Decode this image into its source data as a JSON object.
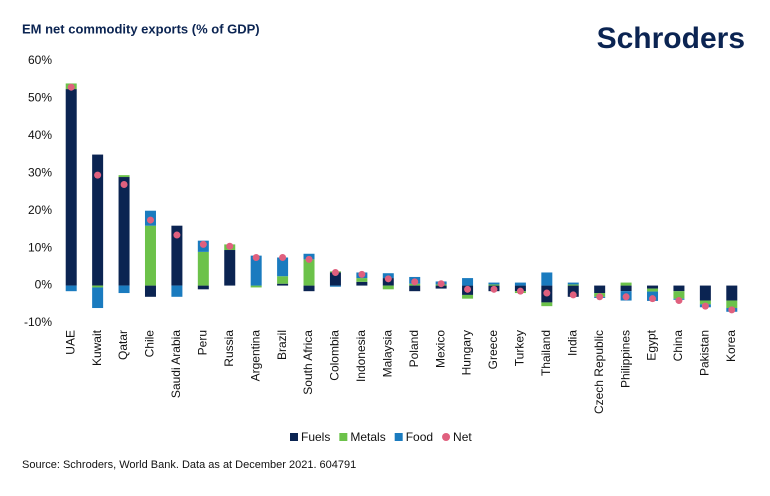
{
  "chart_data": {
    "type": "bar",
    "stacked": true,
    "title": "EM net commodity exports (% of GDP)",
    "logo": "Schroders",
    "source": "Source: Schroders, World Bank. Data as at December 2021. 604791",
    "categories": [
      "UAE",
      "Kuwait",
      "Qatar",
      "Chile",
      "Saudi Arabia",
      "Peru",
      "Russia",
      "Argentina",
      "Brazil",
      "South Africa",
      "Colombia",
      "Indonesia",
      "Malaysia",
      "Poland",
      "Mexico",
      "Hungary",
      "Greece",
      "Turkey",
      "Thailand",
      "India",
      "Czech Republic",
      "Philippines",
      "Egypt",
      "China",
      "Pakistan",
      "Korea"
    ],
    "series": [
      {
        "name": "Fuels",
        "color": "#0b2452",
        "values": [
          52.5,
          35,
          29,
          -3,
          16,
          -1,
          9.5,
          0,
          0.5,
          -1.5,
          3.5,
          1,
          2,
          -1.5,
          -0.8,
          -2.5,
          -1.5,
          -1.5,
          -4.5,
          -3,
          -2,
          -1.5,
          -0.8,
          -1.5,
          -4,
          -4
        ]
      },
      {
        "name": "Metals",
        "color": "#6cc24a",
        "values": [
          1.5,
          -0.5,
          0.5,
          16,
          0,
          9,
          1.5,
          -0.5,
          2,
          7,
          0.3,
          1,
          -1,
          0.5,
          0.3,
          -1,
          0.3,
          -0.5,
          -1,
          0.3,
          -1,
          0.8,
          -0.8,
          -2,
          -1,
          -2
        ]
      },
      {
        "name": "Food",
        "color": "#1a7bbf",
        "values": [
          -1.5,
          -5.5,
          -2,
          4,
          -3,
          3,
          0,
          8,
          5,
          1.5,
          -0.3,
          1.5,
          1.3,
          1.8,
          0.8,
          2,
          0.5,
          0.8,
          3.5,
          0.5,
          -0.3,
          -2.5,
          -2.5,
          -0.3,
          -0.8,
          -1
        ]
      },
      {
        "name": "Net",
        "type": "dot",
        "color": "#e0607e",
        "values": [
          53,
          29.5,
          27,
          17.5,
          13.5,
          11,
          10.5,
          7.5,
          7.5,
          7,
          3.5,
          3,
          1.8,
          1,
          0.5,
          -1,
          -1,
          -1.5,
          -2,
          -2.5,
          -3,
          -3,
          -3.5,
          -4,
          -5.5,
          -6.5
        ]
      }
    ],
    "ylim": [
      -10,
      60
    ],
    "yticks": [
      {
        "value": -10,
        "label": "-10%"
      },
      {
        "value": 0,
        "label": "0%"
      },
      {
        "value": 10,
        "label": "10%"
      },
      {
        "value": 20,
        "label": "20%"
      },
      {
        "value": 30,
        "label": "30%"
      },
      {
        "value": 40,
        "label": "40%"
      },
      {
        "value": 50,
        "label": "50%"
      },
      {
        "value": 60,
        "label": "60%"
      }
    ],
    "grid": false
  }
}
